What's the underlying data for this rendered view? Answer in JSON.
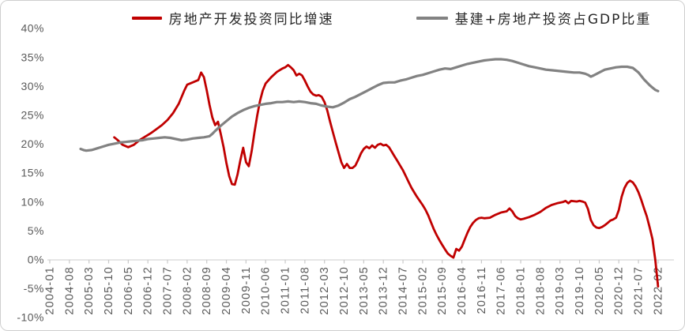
{
  "legend": {
    "series1_label": "房地产开发投资同比增速",
    "series2_label": "基建+房地产投资占GDP比重"
  },
  "chart_data": {
    "type": "line",
    "title": "",
    "xlabel": "",
    "ylabel": "",
    "grid": false,
    "legend_position": "top-center",
    "y_range": [
      -10,
      40
    ],
    "y_tick_labels": [
      "40%",
      "35%",
      "30%",
      "25%",
      "20%",
      "15%",
      "10%",
      "5%",
      "0%",
      "-5%",
      "-10%"
    ],
    "x_tick_labels": [
      "2004-01",
      "2004-08",
      "2005-03",
      "2005-10",
      "2006-05",
      "2006-12",
      "2007-07",
      "2008-02",
      "2008-09",
      "2009-04",
      "2009-11",
      "2010-06",
      "2011-01",
      "2011-08",
      "2012-03",
      "2012-10",
      "2013-05",
      "2013-12",
      "2014-07",
      "2015-02",
      "2015-09",
      "2016-04",
      "2016-11",
      "2017-06",
      "2018-01",
      "2018-08",
      "2019-03",
      "2019-10",
      "2020-05",
      "2020-12",
      "2021-07",
      "2022-02"
    ],
    "axis_color": "#d6d6d6",
    "tick_color": "#c9c9c9",
    "label_color": "#595959",
    "series": [
      {
        "id": "real-estate-investment-growth",
        "name": "房地产开发投资同比增速",
        "color": "#c00000",
        "points": [
          [
            "2005-12",
            21.2
          ],
          [
            "2006-01",
            20.8
          ],
          [
            "2006-03",
            19.9
          ],
          [
            "2006-05",
            19.5
          ],
          [
            "2006-07",
            19.9
          ],
          [
            "2006-09",
            20.7
          ],
          [
            "2006-11",
            21.3
          ],
          [
            "2007-01",
            21.9
          ],
          [
            "2007-03",
            22.6
          ],
          [
            "2007-05",
            23.3
          ],
          [
            "2007-07",
            24.2
          ],
          [
            "2007-09",
            25.4
          ],
          [
            "2007-11",
            27.0
          ],
          [
            "2008-01",
            29.3
          ],
          [
            "2008-02",
            30.3
          ],
          [
            "2008-04",
            30.7
          ],
          [
            "2008-06",
            31.1
          ],
          [
            "2008-07",
            32.4
          ],
          [
            "2008-08",
            31.6
          ],
          [
            "2008-09",
            29.3
          ],
          [
            "2008-10",
            26.8
          ],
          [
            "2008-11",
            24.6
          ],
          [
            "2008-12",
            23.3
          ],
          [
            "2009-01",
            23.9
          ],
          [
            "2009-02",
            21.8
          ],
          [
            "2009-03",
            19.5
          ],
          [
            "2009-04",
            16.8
          ],
          [
            "2009-05",
            14.5
          ],
          [
            "2009-06",
            13.1
          ],
          [
            "2009-07",
            13.0
          ],
          [
            "2009-08",
            14.8
          ],
          [
            "2009-09",
            17.3
          ],
          [
            "2009-10",
            19.4
          ],
          [
            "2009-11",
            16.9
          ],
          [
            "2009-12",
            16.2
          ],
          [
            "2010-01",
            18.8
          ],
          [
            "2010-02",
            22.0
          ],
          [
            "2010-03",
            25.0
          ],
          [
            "2010-04",
            27.5
          ],
          [
            "2010-05",
            29.3
          ],
          [
            "2010-06",
            30.5
          ],
          [
            "2010-08",
            31.6
          ],
          [
            "2010-10",
            32.5
          ],
          [
            "2010-12",
            33.1
          ],
          [
            "2011-01",
            33.3
          ],
          [
            "2011-02",
            33.7
          ],
          [
            "2011-03",
            33.3
          ],
          [
            "2011-04",
            32.8
          ],
          [
            "2011-05",
            31.9
          ],
          [
            "2011-06",
            32.2
          ],
          [
            "2011-07",
            31.9
          ],
          [
            "2011-08",
            31.0
          ],
          [
            "2011-09",
            30.0
          ],
          [
            "2011-10",
            29.1
          ],
          [
            "2011-11",
            28.6
          ],
          [
            "2011-12",
            28.4
          ],
          [
            "2012-01",
            28.5
          ],
          [
            "2012-02",
            28.2
          ],
          [
            "2012-03",
            27.3
          ],
          [
            "2012-04",
            25.8
          ],
          [
            "2012-05",
            23.9
          ],
          [
            "2012-06",
            22.1
          ],
          [
            "2012-07",
            20.3
          ],
          [
            "2012-08",
            18.6
          ],
          [
            "2012-09",
            16.9
          ],
          [
            "2012-10",
            15.9
          ],
          [
            "2012-11",
            16.6
          ],
          [
            "2012-12",
            15.9
          ],
          [
            "2013-01",
            15.9
          ],
          [
            "2013-02",
            16.3
          ],
          [
            "2013-03",
            17.3
          ],
          [
            "2013-04",
            18.4
          ],
          [
            "2013-05",
            19.2
          ],
          [
            "2013-06",
            19.6
          ],
          [
            "2013-07",
            19.3
          ],
          [
            "2013-08",
            19.8
          ],
          [
            "2013-09",
            19.4
          ],
          [
            "2013-10",
            19.9
          ],
          [
            "2013-11",
            20.1
          ],
          [
            "2013-12",
            19.8
          ],
          [
            "2014-01",
            19.9
          ],
          [
            "2014-02",
            19.5
          ],
          [
            "2014-03",
            18.7
          ],
          [
            "2014-04",
            17.9
          ],
          [
            "2014-05",
            17.1
          ],
          [
            "2014-06",
            16.3
          ],
          [
            "2014-07",
            15.5
          ],
          [
            "2014-08",
            14.5
          ],
          [
            "2014-09",
            13.5
          ],
          [
            "2014-10",
            12.5
          ],
          [
            "2014-11",
            11.7
          ],
          [
            "2014-12",
            10.9
          ],
          [
            "2015-01",
            10.2
          ],
          [
            "2015-02",
            9.5
          ],
          [
            "2015-03",
            8.7
          ],
          [
            "2015-04",
            7.7
          ],
          [
            "2015-05",
            6.5
          ],
          [
            "2015-06",
            5.3
          ],
          [
            "2015-07",
            4.3
          ],
          [
            "2015-08",
            3.4
          ],
          [
            "2015-09",
            2.6
          ],
          [
            "2015-10",
            1.8
          ],
          [
            "2015-11",
            1.1
          ],
          [
            "2015-12",
            0.7
          ],
          [
            "2016-01",
            0.4
          ],
          [
            "2016-02",
            1.9
          ],
          [
            "2016-03",
            1.6
          ],
          [
            "2016-04",
            2.3
          ],
          [
            "2016-05",
            3.5
          ],
          [
            "2016-06",
            4.7
          ],
          [
            "2016-07",
            5.7
          ],
          [
            "2016-08",
            6.4
          ],
          [
            "2016-09",
            6.9
          ],
          [
            "2016-10",
            7.2
          ],
          [
            "2016-11",
            7.3
          ],
          [
            "2016-12",
            7.2
          ],
          [
            "2017-02",
            7.3
          ],
          [
            "2017-04",
            7.8
          ],
          [
            "2017-06",
            8.2
          ],
          [
            "2017-08",
            8.4
          ],
          [
            "2017-09",
            8.9
          ],
          [
            "2017-10",
            8.4
          ],
          [
            "2017-11",
            7.6
          ],
          [
            "2017-12",
            7.2
          ],
          [
            "2018-01",
            7.0
          ],
          [
            "2018-02",
            7.1
          ],
          [
            "2018-04",
            7.4
          ],
          [
            "2018-06",
            7.8
          ],
          [
            "2018-08",
            8.3
          ],
          [
            "2018-10",
            9.0
          ],
          [
            "2018-12",
            9.5
          ],
          [
            "2019-02",
            9.8
          ],
          [
            "2019-04",
            10.0
          ],
          [
            "2019-05",
            10.2
          ],
          [
            "2019-06",
            9.8
          ],
          [
            "2019-07",
            10.2
          ],
          [
            "2019-09",
            10.1
          ],
          [
            "2019-10",
            10.2
          ],
          [
            "2019-11",
            10.1
          ],
          [
            "2019-12",
            9.9
          ],
          [
            "2020-01",
            8.8
          ],
          [
            "2020-02",
            6.9
          ],
          [
            "2020-03",
            6.0
          ],
          [
            "2020-04",
            5.6
          ],
          [
            "2020-05",
            5.5
          ],
          [
            "2020-06",
            5.7
          ],
          [
            "2020-07",
            6.0
          ],
          [
            "2020-08",
            6.4
          ],
          [
            "2020-09",
            6.8
          ],
          [
            "2020-10",
            7.0
          ],
          [
            "2020-11",
            7.3
          ],
          [
            "2020-12",
            8.6
          ],
          [
            "2021-01",
            10.9
          ],
          [
            "2021-02",
            12.4
          ],
          [
            "2021-03",
            13.3
          ],
          [
            "2021-04",
            13.7
          ],
          [
            "2021-05",
            13.4
          ],
          [
            "2021-06",
            12.7
          ],
          [
            "2021-07",
            11.7
          ],
          [
            "2021-08",
            10.4
          ],
          [
            "2021-09",
            8.9
          ],
          [
            "2021-10",
            7.5
          ],
          [
            "2021-11",
            5.6
          ],
          [
            "2021-12",
            3.6
          ],
          [
            "2022-01",
            0.0
          ],
          [
            "2022-02",
            -4.6
          ]
        ]
      },
      {
        "id": "infra-plus-real-estate-gdp-share",
        "name": "基建+房地产投资占GDP比重",
        "color": "#828282",
        "points": [
          [
            "2004-12",
            19.2
          ],
          [
            "2005-01",
            19.0
          ],
          [
            "2005-02",
            18.9
          ],
          [
            "2005-04",
            19.0
          ],
          [
            "2005-06",
            19.3
          ],
          [
            "2005-08",
            19.6
          ],
          [
            "2005-10",
            19.9
          ],
          [
            "2005-12",
            20.1
          ],
          [
            "2006-02",
            20.3
          ],
          [
            "2006-04",
            20.4
          ],
          [
            "2006-06",
            20.5
          ],
          [
            "2006-08",
            20.6
          ],
          [
            "2006-10",
            20.7
          ],
          [
            "2006-12",
            20.9
          ],
          [
            "2007-02",
            21.0
          ],
          [
            "2007-04",
            21.1
          ],
          [
            "2007-06",
            21.2
          ],
          [
            "2007-08",
            21.1
          ],
          [
            "2007-10",
            20.9
          ],
          [
            "2007-12",
            20.7
          ],
          [
            "2008-02",
            20.8
          ],
          [
            "2008-04",
            21.0
          ],
          [
            "2008-06",
            21.1
          ],
          [
            "2008-08",
            21.2
          ],
          [
            "2008-10",
            21.4
          ],
          [
            "2008-11",
            21.8
          ],
          [
            "2008-12",
            22.3
          ],
          [
            "2009-02",
            23.2
          ],
          [
            "2009-04",
            24.0
          ],
          [
            "2009-06",
            24.8
          ],
          [
            "2009-08",
            25.4
          ],
          [
            "2009-10",
            25.9
          ],
          [
            "2009-12",
            26.3
          ],
          [
            "2010-02",
            26.6
          ],
          [
            "2010-04",
            26.8
          ],
          [
            "2010-06",
            27.0
          ],
          [
            "2010-08",
            27.1
          ],
          [
            "2010-10",
            27.3
          ],
          [
            "2010-12",
            27.3
          ],
          [
            "2011-02",
            27.4
          ],
          [
            "2011-04",
            27.3
          ],
          [
            "2011-06",
            27.4
          ],
          [
            "2011-08",
            27.3
          ],
          [
            "2011-10",
            27.1
          ],
          [
            "2011-12",
            27.0
          ],
          [
            "2012-02",
            26.7
          ],
          [
            "2012-04",
            26.5
          ],
          [
            "2012-06",
            26.4
          ],
          [
            "2012-08",
            26.7
          ],
          [
            "2012-10",
            27.2
          ],
          [
            "2012-12",
            27.8
          ],
          [
            "2013-02",
            28.2
          ],
          [
            "2013-04",
            28.7
          ],
          [
            "2013-06",
            29.2
          ],
          [
            "2013-08",
            29.7
          ],
          [
            "2013-10",
            30.2
          ],
          [
            "2013-12",
            30.6
          ],
          [
            "2014-02",
            30.7
          ],
          [
            "2014-04",
            30.7
          ],
          [
            "2014-06",
            31.0
          ],
          [
            "2014-08",
            31.2
          ],
          [
            "2014-10",
            31.5
          ],
          [
            "2014-12",
            31.8
          ],
          [
            "2015-02",
            32.0
          ],
          [
            "2015-04",
            32.3
          ],
          [
            "2015-06",
            32.6
          ],
          [
            "2015-08",
            32.9
          ],
          [
            "2015-10",
            33.1
          ],
          [
            "2015-12",
            33.0
          ],
          [
            "2016-02",
            33.3
          ],
          [
            "2016-04",
            33.6
          ],
          [
            "2016-06",
            33.9
          ],
          [
            "2016-08",
            34.1
          ],
          [
            "2016-10",
            34.3
          ],
          [
            "2016-12",
            34.5
          ],
          [
            "2017-02",
            34.6
          ],
          [
            "2017-04",
            34.7
          ],
          [
            "2017-06",
            34.7
          ],
          [
            "2017-08",
            34.6
          ],
          [
            "2017-10",
            34.4
          ],
          [
            "2017-12",
            34.1
          ],
          [
            "2018-02",
            33.8
          ],
          [
            "2018-04",
            33.5
          ],
          [
            "2018-06",
            33.3
          ],
          [
            "2018-08",
            33.1
          ],
          [
            "2018-10",
            32.9
          ],
          [
            "2018-12",
            32.8
          ],
          [
            "2019-02",
            32.7
          ],
          [
            "2019-04",
            32.6
          ],
          [
            "2019-06",
            32.5
          ],
          [
            "2019-08",
            32.4
          ],
          [
            "2019-10",
            32.4
          ],
          [
            "2019-12",
            32.2
          ],
          [
            "2020-01",
            32.0
          ],
          [
            "2020-02",
            31.7
          ],
          [
            "2020-03",
            31.9
          ],
          [
            "2020-05",
            32.4
          ],
          [
            "2020-07",
            32.9
          ],
          [
            "2020-09",
            33.1
          ],
          [
            "2020-11",
            33.3
          ],
          [
            "2021-01",
            33.4
          ],
          [
            "2021-03",
            33.4
          ],
          [
            "2021-05",
            33.2
          ],
          [
            "2021-07",
            32.4
          ],
          [
            "2021-09",
            31.2
          ],
          [
            "2021-11",
            30.2
          ],
          [
            "2021-12",
            29.8
          ],
          [
            "2022-01",
            29.4
          ],
          [
            "2022-02",
            29.2
          ]
        ]
      }
    ]
  }
}
